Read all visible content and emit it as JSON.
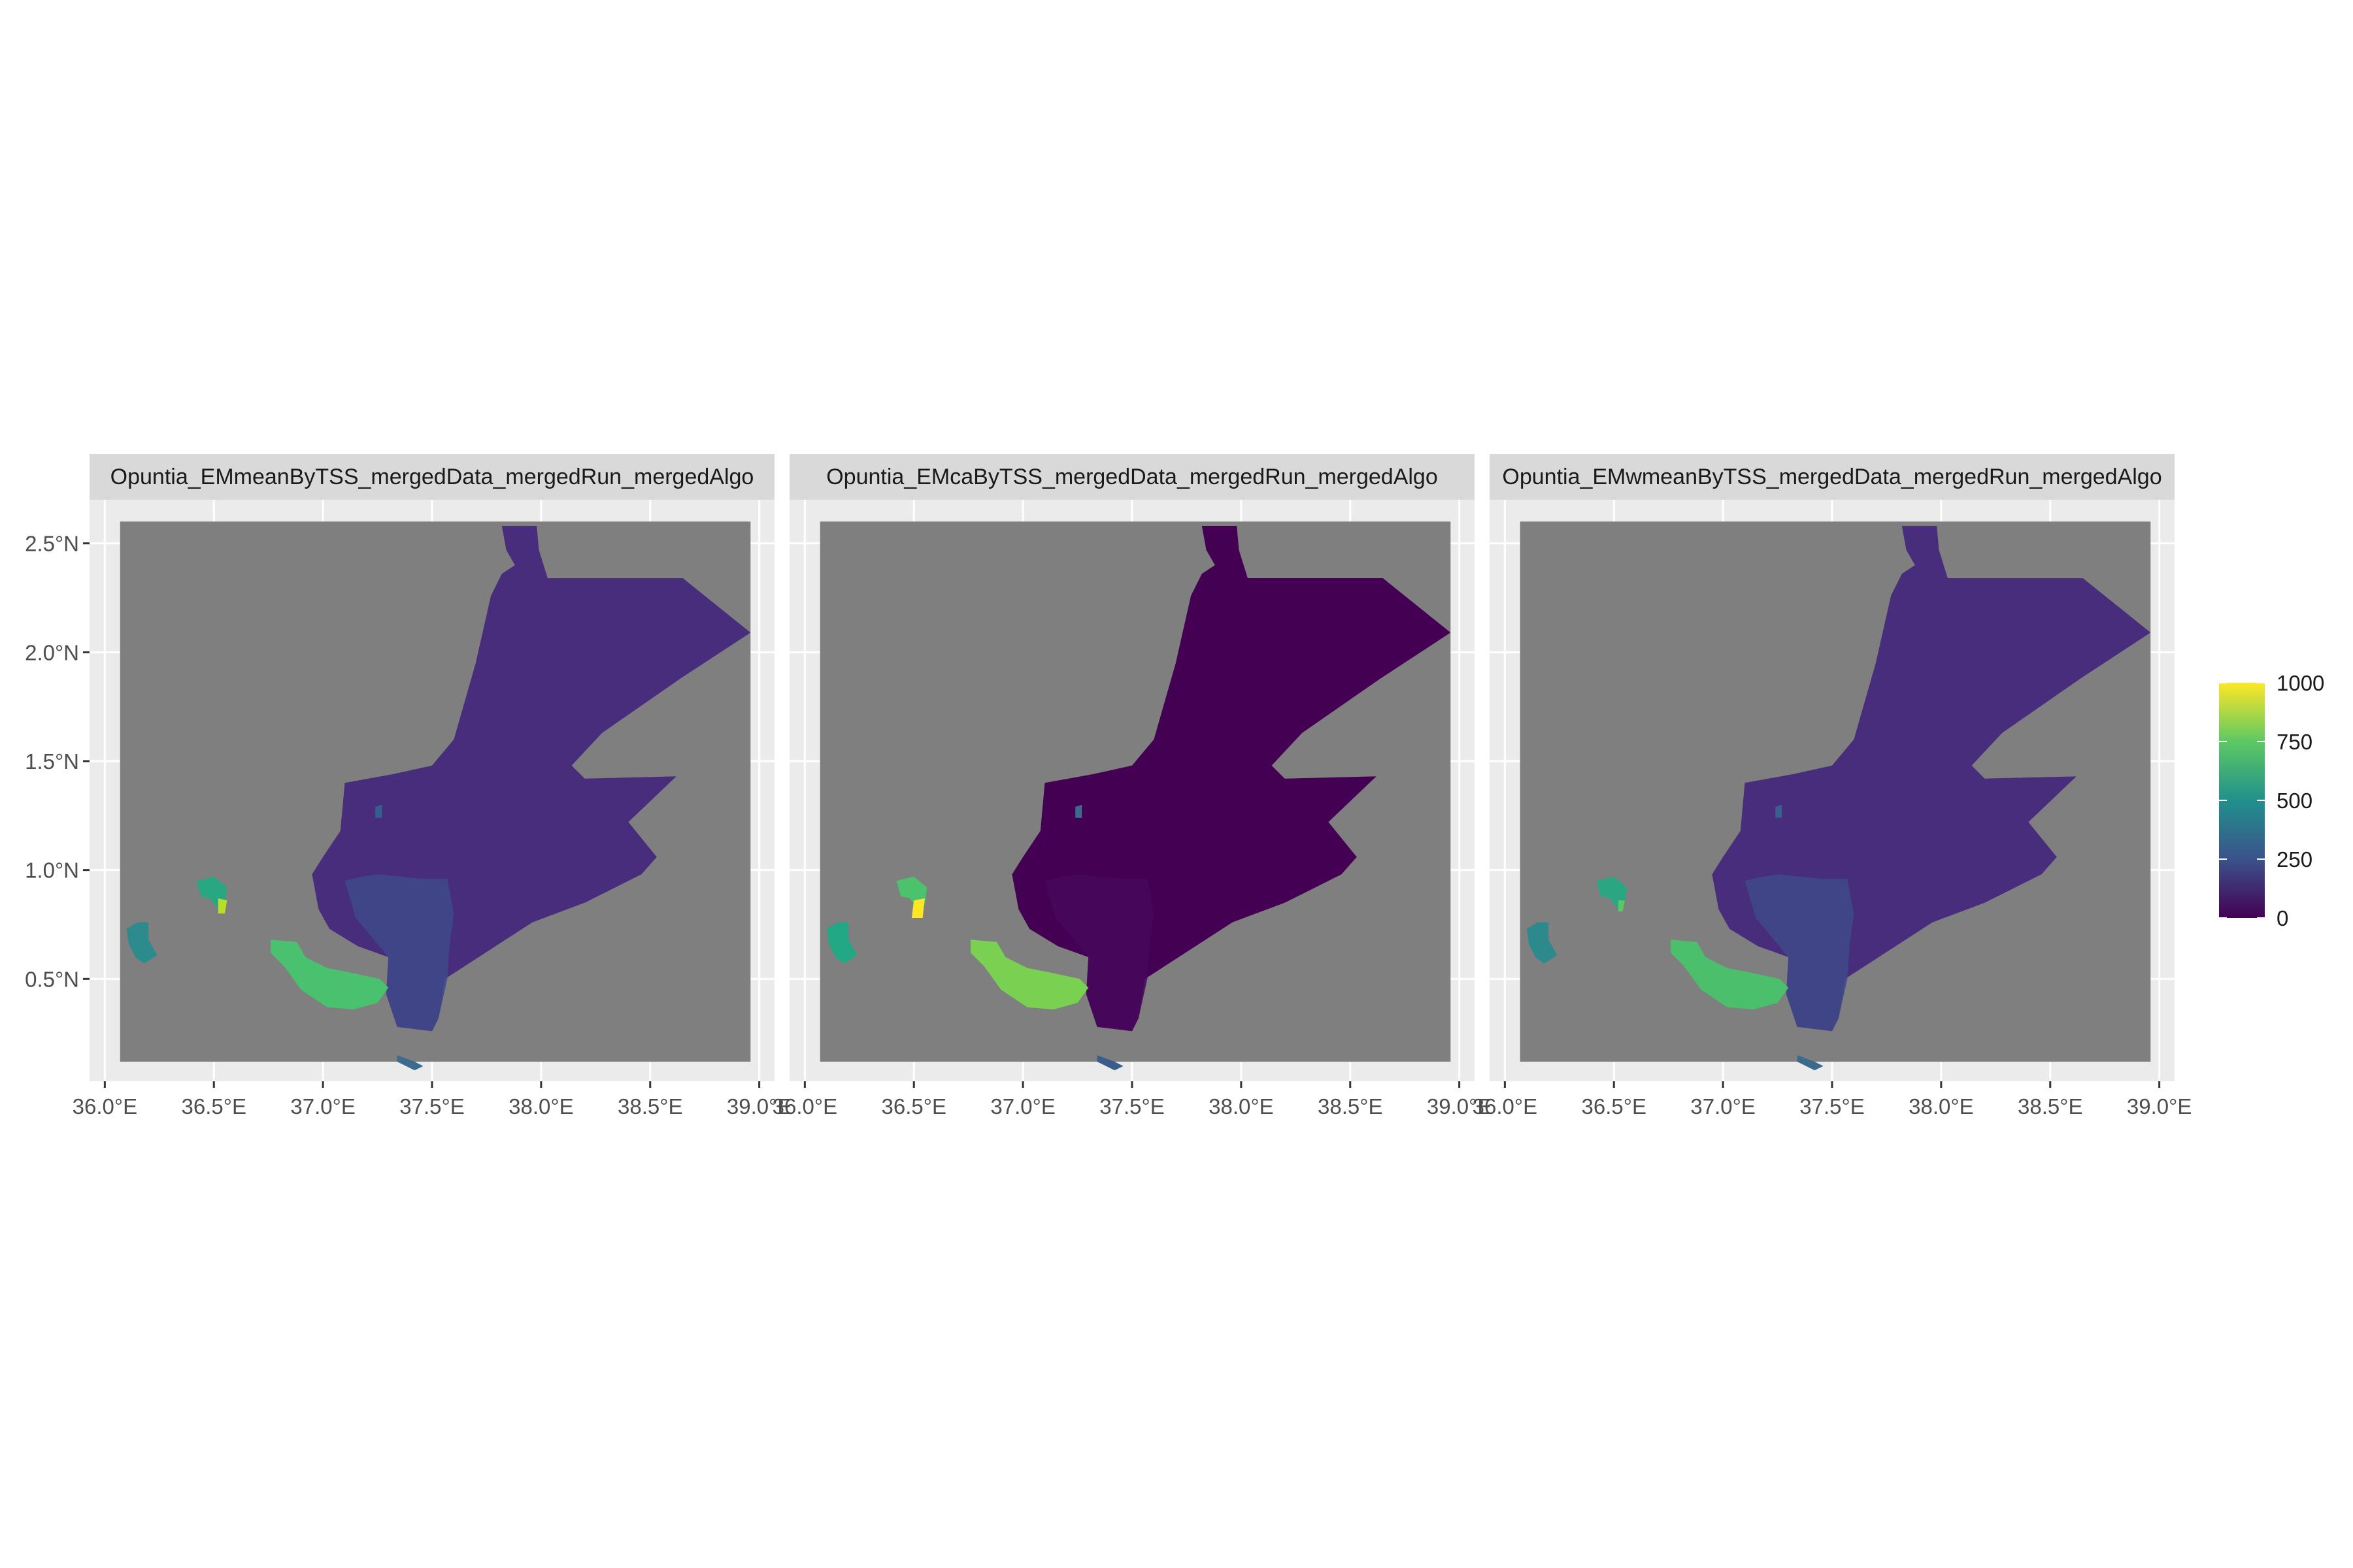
{
  "figure": {
    "panels": [
      {
        "strip": "Opuntia_EMmeanByTSS_mergedData_mergedRun_mergedAlgo",
        "style": "mean"
      },
      {
        "strip": "Opuntia_EMcaByTSS_mergedData_mergedRun_mergedAlgo",
        "style": "ca"
      },
      {
        "strip": "Opuntia_EMwmeanByTSS_mergedData_mergedRun_mergedAlgo",
        "style": "wmean"
      }
    ],
    "x_axis": {
      "ticks": [
        36.0,
        36.5,
        37.0,
        37.5,
        38.0,
        38.5,
        39.0
      ],
      "tick_labels": [
        "36.0°E",
        "36.5°E",
        "37.0°E",
        "37.5°E",
        "38.0°E",
        "38.5°E",
        "39.0°E"
      ],
      "lim": [
        35.93,
        39.07
      ]
    },
    "y_axis": {
      "ticks": [
        0.5,
        1.0,
        1.5,
        2.0,
        2.5
      ],
      "tick_labels": [
        "0.5°N",
        "1.0°N",
        "1.5°N",
        "2.0°N",
        "2.5°N"
      ],
      "lim": [
        0.03,
        2.7
      ]
    },
    "raster_extent": {
      "lon": [
        36.07,
        38.96
      ],
      "lat": [
        0.12,
        2.6
      ]
    },
    "legend": {
      "breaks": [
        0,
        250,
        500,
        750,
        1000
      ],
      "labels": [
        "0",
        "250",
        "500",
        "750",
        "1000"
      ],
      "limits": [
        0,
        1000
      ],
      "palette": "viridis",
      "colors": [
        "#440154",
        "#3b528b",
        "#21908c",
        "#5dc863",
        "#fde725"
      ]
    },
    "colors": {
      "panel_background": "#ebebeb",
      "grid": "#ffffff",
      "na_fill": "#7f7f7f",
      "strip_background": "#d9d9d9",
      "axis_text": "#4d4d4d",
      "main_region_mean": "#472d7b",
      "main_region_ca": "#440154",
      "main_region_wmean": "#472d7b",
      "south_region_mean": "#3e4a89",
      "south_region_ca": "#46085c",
      "south_region_wmean": "#3e4a89"
    }
  }
}
